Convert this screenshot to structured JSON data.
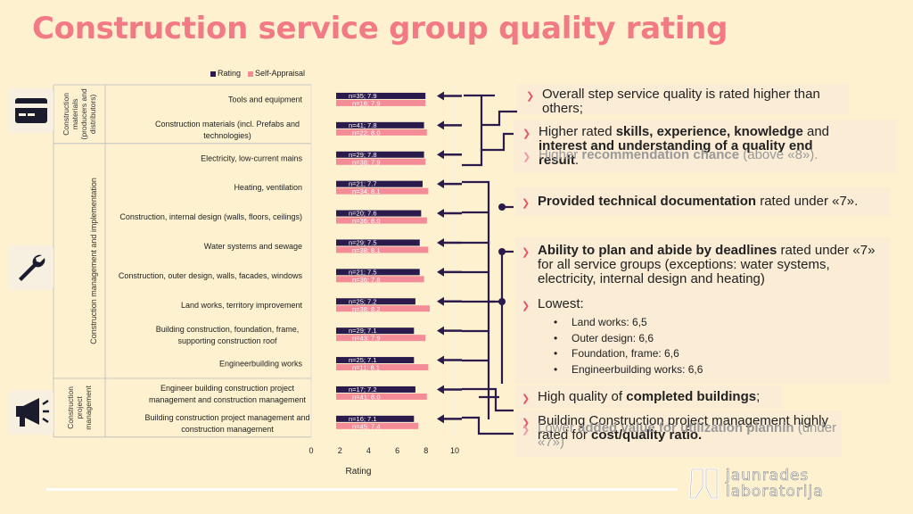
{
  "title": "Construction service group quality rating",
  "colors": {
    "rating": "#2b1b4d",
    "self": "#f48c97",
    "accent": "#e2576a",
    "title": "#f27a85"
  },
  "chart_data": {
    "type": "bar",
    "orientation": "horizontal",
    "xlabel": "Rating",
    "xlim": [
      0,
      10
    ],
    "xticks": [
      "0",
      "2",
      "4",
      "6",
      "8",
      "10"
    ],
    "legend": [
      "Rating",
      "Self-Appraisal"
    ],
    "categories": [
      "Tools and equipment",
      "Construction materials (incl. Prefabs and technologies)",
      "Electricity, low-current mains",
      "Heating, ventilation",
      "Construction, internal design (walls, floors, ceilings)",
      "Water systems and sewage",
      "Construction, outer design, walls, facades, windows",
      "Land works, territory improvement",
      "Building construction, foundation, frame, supporting construction roof",
      "Engineerbuilding works",
      "Engineer building construction project management and construction management",
      "Building construction project management and construction management"
    ],
    "category_lines": [
      [
        "Tools and equipment"
      ],
      [
        "Construction materials (incl. Prefabs and",
        "technologies)"
      ],
      [
        "Electricity, low-current mains"
      ],
      [
        "Heating, ventilation"
      ],
      [
        "Construction, internal design (walls, floors, ceilings)"
      ],
      [
        "Water systems and sewage"
      ],
      [
        "Construction, outer design, walls, facades, windows"
      ],
      [
        "Land works, territory improvement"
      ],
      [
        "Building construction, foundation, frame,",
        "supporting construction roof"
      ],
      [
        "Engineerbuilding works"
      ],
      [
        "Engineer building construction project",
        "management and construction management"
      ],
      [
        "Building construction project management and",
        "construction management"
      ]
    ],
    "series": [
      {
        "name": "Rating",
        "values": [
          7.9,
          7.8,
          7.8,
          7.7,
          7.6,
          7.5,
          7.5,
          7.2,
          7.1,
          7.1,
          7.2,
          7.1
        ]
      },
      {
        "name": "Self-Appraisal",
        "values": [
          7.9,
          8.0,
          7.9,
          8.1,
          8.0,
          8.1,
          7.8,
          8.2,
          7.9,
          8.1,
          8.0,
          7.4
        ]
      }
    ],
    "rating_labels": [
      "n=35; 7.9",
      "n=41; 7.8",
      "n=29; 7.8",
      "n=21; 7.7",
      "n=20; 7.6",
      "n=29; 7.5",
      "n=21; 7.5",
      "n=25; 7.2",
      "n=29; 7.1",
      "n=25; 7.1",
      "n=17; 7.2",
      "n=16; 7.1"
    ],
    "self_labels": [
      "n=16; 7.9",
      "n=22; 8.0",
      "n=38; 7.9",
      "n=34; 8.1",
      "n=36; 8.0",
      "n=38; 8.1",
      "n=36; 7.8",
      "n=38; 8.2",
      "n=43; 7.9",
      "n=11; 8.1",
      "n=41; 8.0",
      "n=45; 7.4"
    ],
    "groups": [
      {
        "lines": [
          "Construction",
          "materials",
          "(producers and",
          "distributors)"
        ],
        "start": 0,
        "end": 1
      },
      {
        "lines": [
          "Construction management and implementation"
        ],
        "start": 2,
        "end": 9
      },
      {
        "lines": [
          "Construction",
          "project",
          "management"
        ],
        "start": 10,
        "end": 11
      }
    ]
  },
  "icons": [
    "credit-card-icon",
    "wrench-icon",
    "megaphone-icon"
  ],
  "panel1": {
    "b1": "Overall step service quality is rated higher than others;",
    "b2_pre": "Higher rated ",
    "b2_bold": "skills, experience, knowledge",
    "b2_mid": " and ",
    "b2_bold2": "interest and understanding of a quality end result",
    "b2_end": ".",
    "b3_pre": "Higher ",
    "b3_bold": "recommendation chance",
    "b3_end": " (above «8»)."
  },
  "panel2": {
    "b1_bold": "Provided technical documentation",
    "b1_end": " rated under «7»."
  },
  "panel3": {
    "b1_bold": "Ability to plan and abide by deadlines",
    "b1_end": " rated under «7» for all service groups (exceptions: water systems, electricity, internal design and heating)",
    "b2": "Lowest:",
    "subs": [
      "Land works: 6,5",
      "Outer design: 6,6",
      "Foundation, frame: 6,6",
      "Engineerbuilding works: 6,6"
    ]
  },
  "panel4": {
    "b1_pre": "High quality of ",
    "b1_bold": "completed buildings",
    "b1_end": ";",
    "b2_pre": "Building Construction project management highly rated for ",
    "b2_bold": "cost/quality ratio.",
    "b3_pre": "Lower ",
    "b3_bold": "added value for utilization plannin",
    "b3_end": " (under «7»)"
  },
  "logo": {
    "line1": "jaunrades",
    "line2": "laboratorija"
  }
}
